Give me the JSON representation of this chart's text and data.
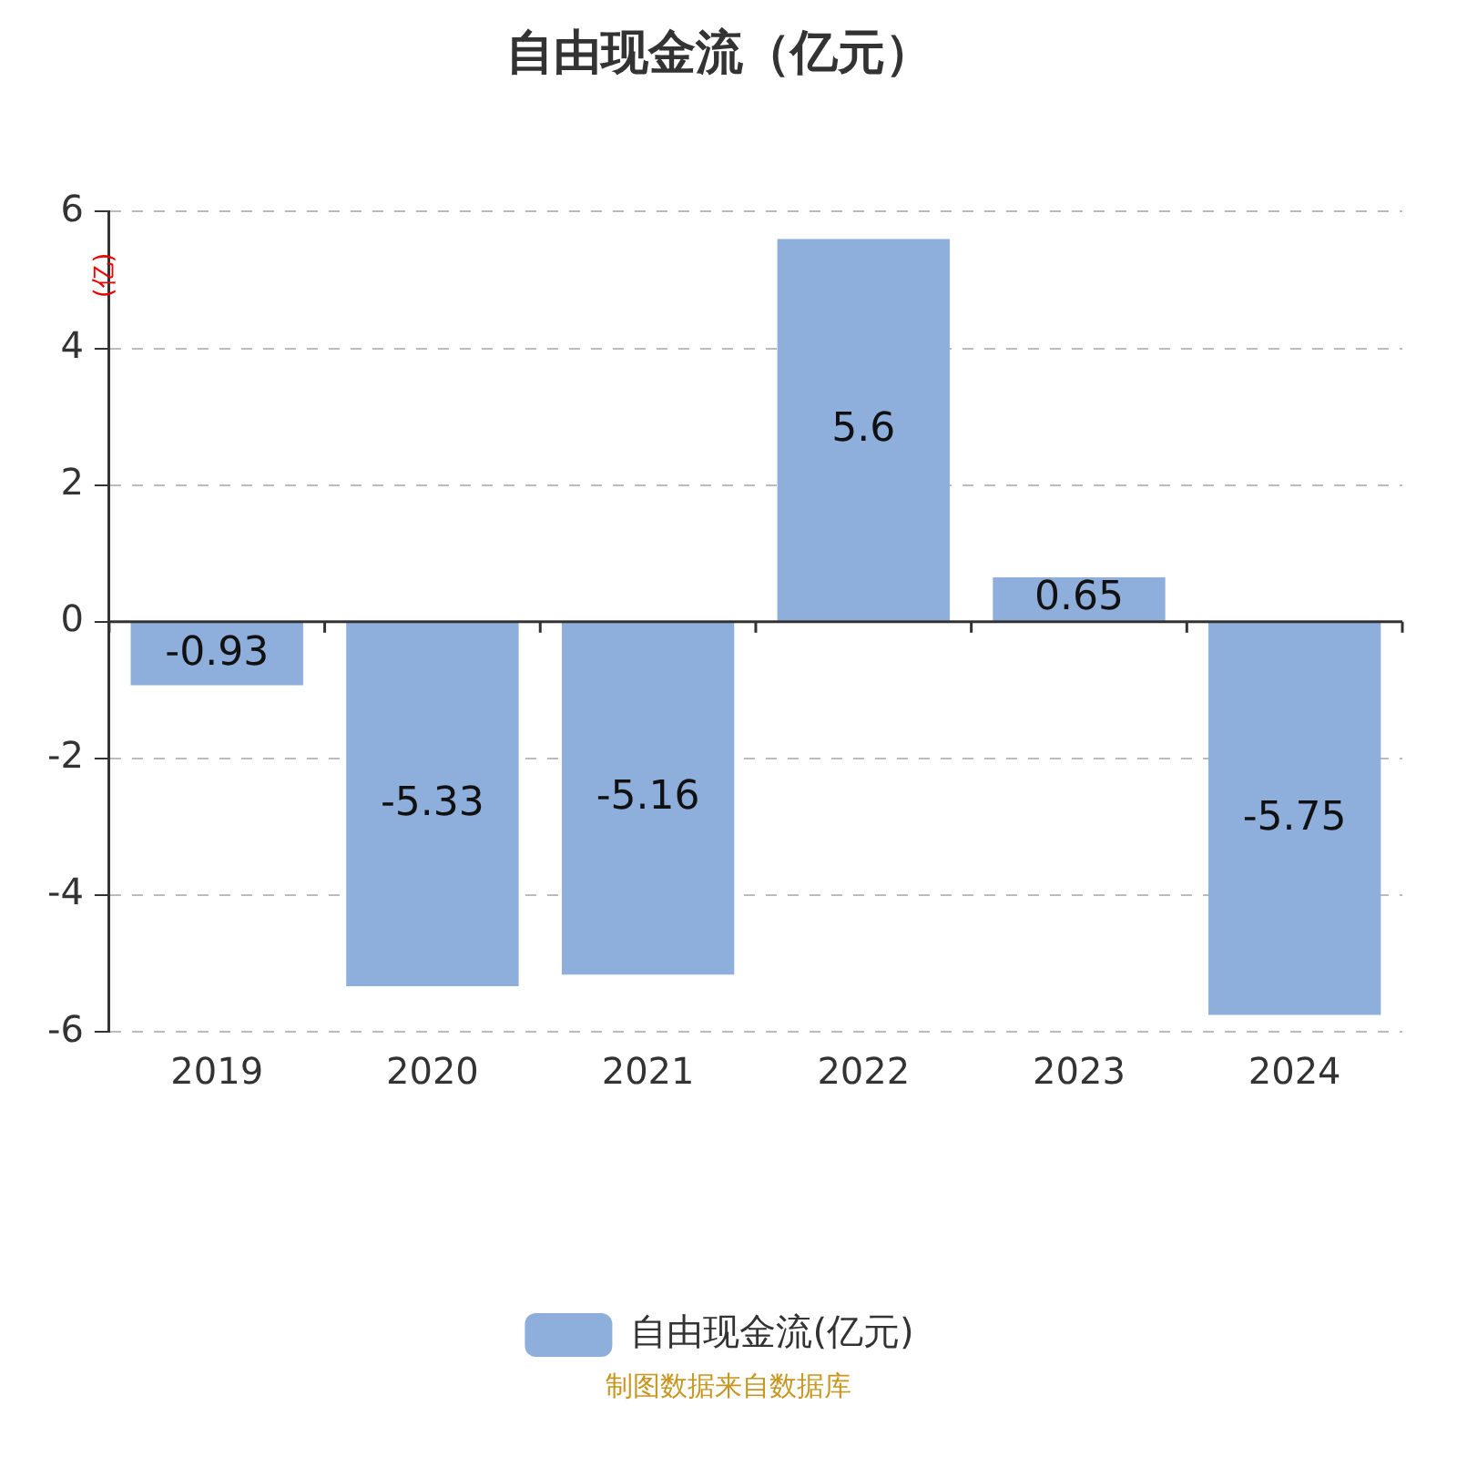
{
  "chart_data": {
    "type": "bar",
    "title": "自由现金流（亿元）",
    "ylabel": "(亿)",
    "categories": [
      "2019",
      "2020",
      "2021",
      "2022",
      "2023",
      "2024"
    ],
    "series": [
      {
        "name": "自由现金流(亿元)",
        "color": "#8eaedb",
        "values": [
          -0.93,
          -5.33,
          -5.16,
          5.6,
          0.65,
          -5.75
        ]
      }
    ],
    "ylim": [
      -6,
      6
    ],
    "yticks": [
      -6,
      -4,
      -2,
      0,
      2,
      4,
      6
    ],
    "grid": "y",
    "legend": "bottom",
    "data_labels": true,
    "annotations": [
      "制图数据来自数据库"
    ]
  }
}
